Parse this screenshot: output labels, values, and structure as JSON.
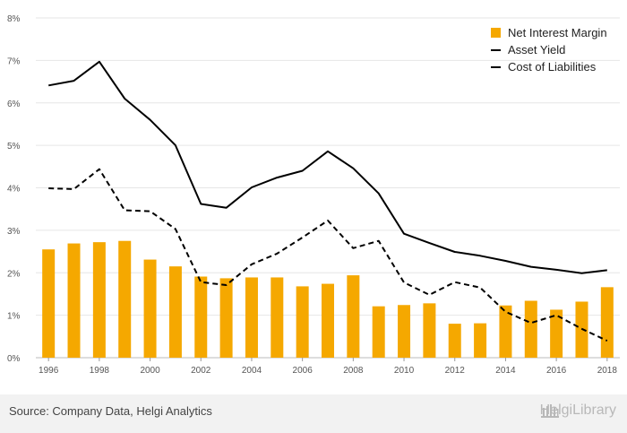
{
  "chart_data": {
    "type": "bar+line",
    "title": "",
    "xlabel": "",
    "ylabel": "",
    "ylim": [
      0,
      8
    ],
    "y_ticks": [
      "0%",
      "1%",
      "2%",
      "3%",
      "4%",
      "5%",
      "6%",
      "7%",
      "8%"
    ],
    "x_tick_labels": [
      "1996",
      "1998",
      "2000",
      "2002",
      "2004",
      "2006",
      "2008",
      "2010",
      "2012",
      "2014",
      "2016",
      "2018"
    ],
    "categories": [
      "1996",
      "1997",
      "1998",
      "1999",
      "2000",
      "2001",
      "2002",
      "2003",
      "2004",
      "2005",
      "2006",
      "2007",
      "2008",
      "2009",
      "2010",
      "2011",
      "2012",
      "2013",
      "2014",
      "2015",
      "2016",
      "2017",
      "2018"
    ],
    "grid": true,
    "legend_position": "top-right",
    "series": [
      {
        "name": "Net Interest Margin",
        "type": "bar",
        "color": "#f5a800",
        "values": [
          2.55,
          2.69,
          2.72,
          2.75,
          2.31,
          2.15,
          1.91,
          1.87,
          1.89,
          1.89,
          1.68,
          1.74,
          1.94,
          1.21,
          1.24,
          1.28,
          0.8,
          0.81,
          1.23,
          1.34,
          1.13,
          1.32,
          1.66
        ]
      },
      {
        "name": "Asset Yield",
        "type": "line",
        "style": "solid",
        "color": "#000000",
        "values": [
          6.41,
          6.52,
          6.97,
          6.1,
          5.6,
          5.0,
          3.62,
          3.53,
          4.01,
          4.24,
          4.4,
          4.86,
          4.46,
          3.87,
          2.92,
          2.7,
          2.49,
          2.4,
          2.28,
          2.14,
          2.07,
          1.99,
          2.06
        ]
      },
      {
        "name": "Cost of Liabilities",
        "type": "line",
        "style": "dashed",
        "color": "#000000",
        "values": [
          3.99,
          3.97,
          4.44,
          3.47,
          3.45,
          3.03,
          1.78,
          1.71,
          2.2,
          2.45,
          2.83,
          3.23,
          2.58,
          2.75,
          1.77,
          1.48,
          1.78,
          1.65,
          1.08,
          0.82,
          1.0,
          0.68,
          0.4
        ]
      }
    ]
  },
  "footer": {
    "source": "Source: Company Data, Helgi Analytics",
    "brand": "HelgiLibrary"
  }
}
